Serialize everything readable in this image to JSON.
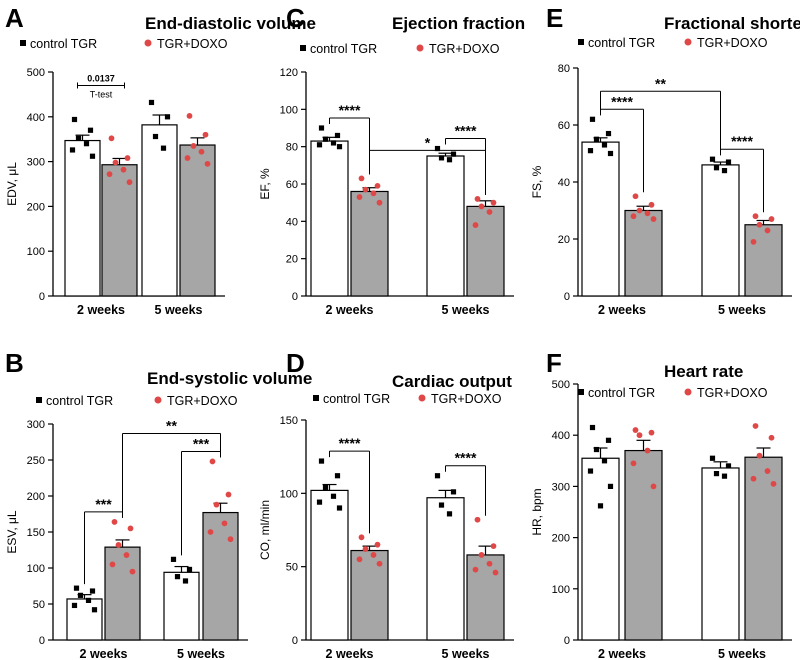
{
  "figure_colors": {
    "control": "#ffffff",
    "doxo": "#a6a6a6",
    "control_point": "#000000",
    "doxo_point": "#e04848"
  },
  "chart_data": [
    {
      "panel": "A",
      "type": "bar",
      "title": "End-diastolic volume",
      "ylabel": "EDV, μL",
      "ylim": [
        0,
        500
      ],
      "yticks": [
        0,
        100,
        200,
        300,
        400,
        500
      ],
      "categories": [
        "2 weeks",
        "5 weeks"
      ],
      "legend": [
        "control TGR",
        "TGR+DOXO"
      ],
      "series": [
        {
          "name": "control TGR",
          "values": [
            347,
            382
          ],
          "sem": [
            12,
            22
          ],
          "points": [
            [
              394,
              370,
              352,
              340,
              326,
              312
            ],
            [
              432,
              400,
              356,
              330
            ]
          ]
        },
        {
          "name": "TGR+DOXO",
          "values": [
            293,
            337
          ],
          "sem": [
            14,
            16
          ],
          "points": [
            [
              352,
              308,
              298,
              282,
              272,
              254
            ],
            [
              402,
              360,
              335,
              322,
              308,
              295
            ]
          ]
        }
      ],
      "annotations": [
        {
          "from": "control TGR|2 weeks",
          "to": "TGR+DOXO|2 weeks",
          "text": "0.0137",
          "note": "T-test"
        }
      ]
    },
    {
      "panel": "B",
      "type": "bar",
      "title": "End-systolic volume",
      "ylabel": "ESV, μL",
      "ylim": [
        0,
        300
      ],
      "yticks": [
        0,
        50,
        100,
        150,
        200,
        250,
        300
      ],
      "categories": [
        "2 weeks",
        "5 weeks"
      ],
      "legend": [
        "control TGR",
        "TGR+DOXO"
      ],
      "series": [
        {
          "name": "control TGR",
          "values": [
            57,
            94
          ],
          "sem": [
            6,
            8
          ],
          "points": [
            [
              72,
              68,
              62,
              55,
              48,
              42
            ],
            [
              112,
              98,
              88,
              82
            ]
          ]
        },
        {
          "name": "TGR+DOXO",
          "values": [
            129,
            177
          ],
          "sem": [
            10,
            13
          ],
          "points": [
            [
              164,
              155,
              132,
              118,
              105,
              95
            ],
            [
              248,
              202,
              188,
              162,
              150,
              140
            ]
          ]
        }
      ],
      "annotations": [
        {
          "from": "control TGR|2 weeks",
          "to": "TGR+DOXO|2 weeks",
          "text": "***"
        },
        {
          "from": "control TGR|5 weeks",
          "to": "TGR+DOXO|5 weeks",
          "text": "***"
        },
        {
          "from": "TGR+DOXO|2 weeks",
          "to": "TGR+DOXO|5 weeks",
          "text": "**"
        }
      ]
    },
    {
      "panel": "C",
      "type": "bar",
      "title": "Ejection fraction",
      "ylabel": "EF, %",
      "ylim": [
        0,
        120
      ],
      "yticks": [
        0,
        20,
        40,
        60,
        80,
        100,
        120
      ],
      "categories": [
        "2 weeks",
        "5 weeks"
      ],
      "legend": [
        "control TGR",
        "TGR+DOXO"
      ],
      "series": [
        {
          "name": "control TGR",
          "values": [
            83,
            75
          ],
          "sem": [
            2,
            1.5
          ],
          "points": [
            [
              90,
              86,
              84,
              82,
              81,
              80
            ],
            [
              79,
              76,
              74,
              73
            ]
          ]
        },
        {
          "name": "TGR+DOXO",
          "values": [
            56,
            48
          ],
          "sem": [
            2,
            3
          ],
          "points": [
            [
              63,
              59,
              57,
              55,
              53,
              50
            ],
            [
              52,
              50,
              48,
              45,
              38
            ]
          ]
        }
      ],
      "annotations": [
        {
          "from": "control TGR|2 weeks",
          "to": "TGR+DOXO|2 weeks",
          "text": "****"
        },
        {
          "from": "control TGR|5 weeks",
          "to": "TGR+DOXO|5 weeks",
          "text": "****"
        },
        {
          "from": "TGR+DOXO|2 weeks",
          "to": "TGR+DOXO|5 weeks",
          "text": "*"
        }
      ]
    },
    {
      "panel": "D",
      "type": "bar",
      "title": "Cardiac output",
      "ylabel": "CO, ml/min",
      "ylim": [
        0,
        150
      ],
      "yticks": [
        0,
        50,
        100,
        150
      ],
      "categories": [
        "2 weeks",
        "5 weeks"
      ],
      "legend": [
        "control TGR",
        "TGR+DOXO"
      ],
      "series": [
        {
          "name": "control TGR",
          "values": [
            102,
            97
          ],
          "sem": [
            4,
            5
          ],
          "points": [
            [
              122,
              112,
              104,
              98,
              94,
              90
            ],
            [
              112,
              101,
              92,
              86
            ]
          ]
        },
        {
          "name": "TGR+DOXO",
          "values": [
            61,
            58
          ],
          "sem": [
            3,
            6
          ],
          "points": [
            [
              70,
              65,
              62,
              58,
              55,
              52
            ],
            [
              82,
              64,
              58,
              52,
              48,
              46
            ]
          ]
        }
      ],
      "annotations": [
        {
          "from": "control TGR|2 weeks",
          "to": "TGR+DOXO|2 weeks",
          "text": "****"
        },
        {
          "from": "control TGR|5 weeks",
          "to": "TGR+DOXO|5 weeks",
          "text": "****"
        }
      ]
    },
    {
      "panel": "E",
      "type": "bar",
      "title": "Fractional shortening",
      "ylabel": "FS, %",
      "ylim": [
        0,
        80
      ],
      "yticks": [
        0,
        20,
        40,
        60,
        80
      ],
      "categories": [
        "2 weeks",
        "5 weeks"
      ],
      "legend": [
        "control TGR",
        "TGR+DOXO"
      ],
      "series": [
        {
          "name": "control TGR",
          "values": [
            54,
            46
          ],
          "sem": [
            1.5,
            1
          ],
          "points": [
            [
              62,
              57,
              55,
              53,
              51,
              50
            ],
            [
              48,
              47,
              45,
              44
            ]
          ]
        },
        {
          "name": "TGR+DOXO",
          "values": [
            30,
            25
          ],
          "sem": [
            1.5,
            1.5
          ],
          "points": [
            [
              35,
              32,
              30,
              29,
              28,
              27
            ],
            [
              28,
              27,
              25,
              23,
              19
            ]
          ]
        }
      ],
      "annotations": [
        {
          "from": "control TGR|2 weeks",
          "to": "TGR+DOXO|2 weeks",
          "text": "****"
        },
        {
          "from": "control TGR|5 weeks",
          "to": "TGR+DOXO|5 weeks",
          "text": "****"
        },
        {
          "from": "control TGR|2 weeks",
          "to": "control TGR|5 weeks",
          "text": "**"
        }
      ]
    },
    {
      "panel": "F",
      "type": "bar",
      "title": "Heart rate",
      "ylabel": "HR, bpm",
      "ylim": [
        0,
        500
      ],
      "yticks": [
        0,
        100,
        200,
        300,
        400,
        500
      ],
      "categories": [
        "2 weeks",
        "5 weeks"
      ],
      "legend": [
        "control TGR",
        "TGR+DOXO"
      ],
      "series": [
        {
          "name": "control TGR",
          "values": [
            355,
            336
          ],
          "sem": [
            20,
            12
          ],
          "points": [
            [
              415,
              390,
              372,
              350,
              330,
              300,
              262
            ],
            [
              355,
              340,
              325,
              320
            ]
          ]
        },
        {
          "name": "TGR+DOXO",
          "values": [
            370,
            357
          ],
          "sem": [
            20,
            18
          ],
          "points": [
            [
              410,
              405,
              400,
              370,
              345,
              300
            ],
            [
              418,
              395,
              360,
              330,
              315,
              305
            ]
          ]
        }
      ],
      "annotations": []
    }
  ]
}
